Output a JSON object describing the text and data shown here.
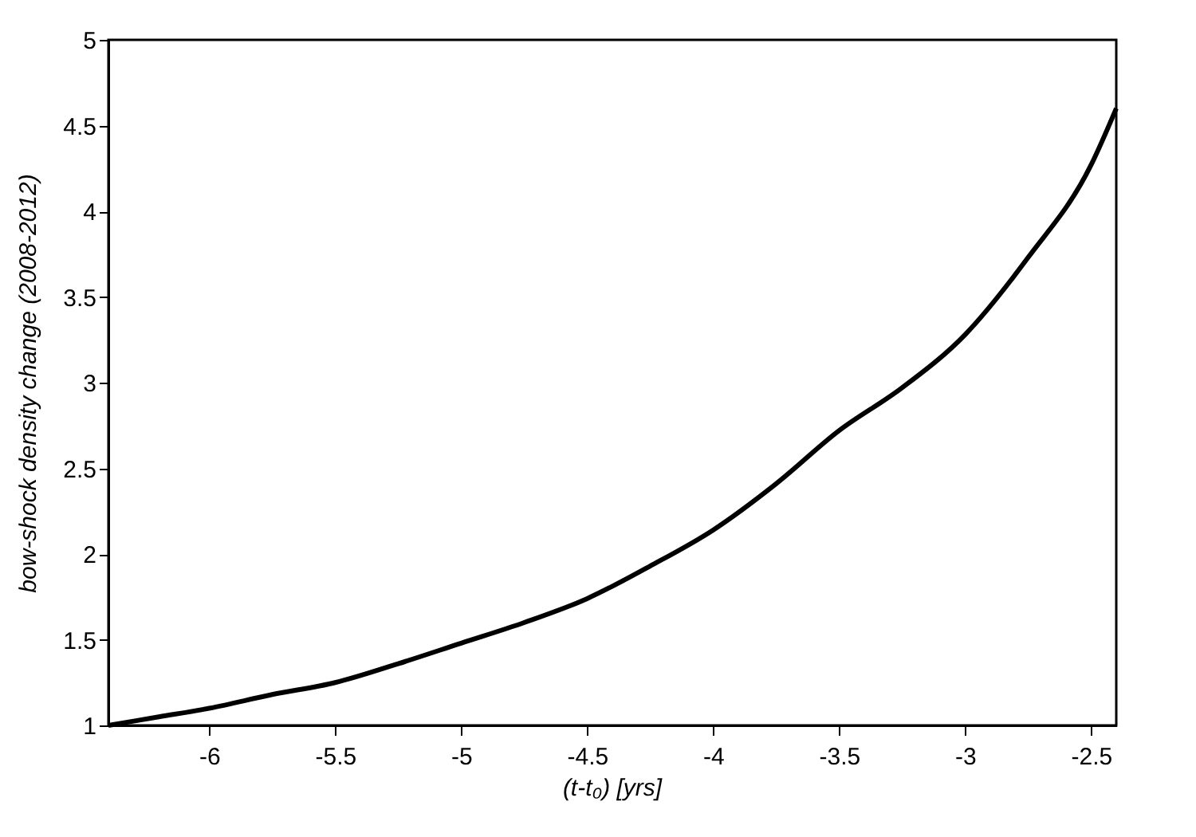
{
  "chart_data": {
    "type": "line",
    "xlabel": "(t-t₀) [yrs]",
    "ylabel": "bow-shock density change (2008-2012)",
    "x": [
      -6.4,
      -6.2,
      -6.0,
      -5.75,
      -5.5,
      -5.25,
      -5.0,
      -4.75,
      -4.5,
      -4.25,
      -4.0,
      -3.75,
      -3.5,
      -3.25,
      -3.0,
      -2.75,
      -2.5,
      -2.4
    ],
    "series": [
      {
        "color": "#000000",
        "values": [
          1.0,
          1.05,
          1.1,
          1.18,
          1.25,
          1.36,
          1.48,
          1.6,
          1.74,
          1.93,
          2.14,
          2.41,
          2.72,
          2.97,
          3.28,
          3.73,
          4.27,
          4.6
        ]
      }
    ],
    "xlim": [
      -6.4,
      -2.4
    ],
    "ylim": [
      1,
      5
    ],
    "xticks": [
      -6,
      -5.5,
      -5,
      -4.5,
      -4,
      -3.5,
      -3,
      -2.5
    ],
    "yticks": [
      1,
      1.5,
      2,
      2.5,
      3,
      3.5,
      4,
      4.5,
      5
    ],
    "grid": false,
    "marker": "none",
    "line_style": "solid"
  }
}
